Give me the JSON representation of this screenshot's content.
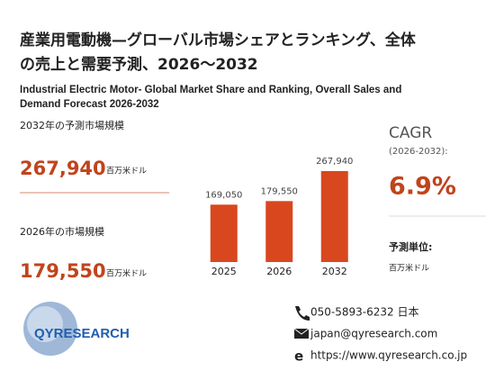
{
  "header": {
    "title_line1": "産業用電動機—グローバル市場シェアとランキング、全体",
    "title_line2": "の売上と需要予測、2026～2032",
    "subtitle_line1": "Industrial Electric Motor- Global Market Share and Ranking, Overall Sales and",
    "subtitle_line2": "Demand Forecast 2026-2032"
  },
  "stats": {
    "forecast_label": "2032年の予測市場規模",
    "forecast_value": "267,940",
    "forecast_unit": "百万米ドル",
    "current_label": "2026年の市場規模",
    "current_value": "179,550",
    "current_unit": "百万米ドル"
  },
  "cagr": {
    "label": "CAGR",
    "period": "(2026-2032):",
    "value": "6.9%",
    "unit_label": "予測単位:",
    "unit": "百万米ドル"
  },
  "chart_data": {
    "type": "bar",
    "categories": [
      "2025",
      "2026",
      "2032"
    ],
    "values": [
      169050,
      179550,
      267940
    ],
    "value_labels": [
      "169,050",
      "179,550",
      "267,940"
    ],
    "color": "#d9471e"
  },
  "logo": {
    "text": "QYRESEARCH"
  },
  "contact": {
    "phone": "050-5893-6232 日本",
    "email": "japan@qyresearch.com",
    "web": "https://www.qyresearch.co.jp"
  }
}
